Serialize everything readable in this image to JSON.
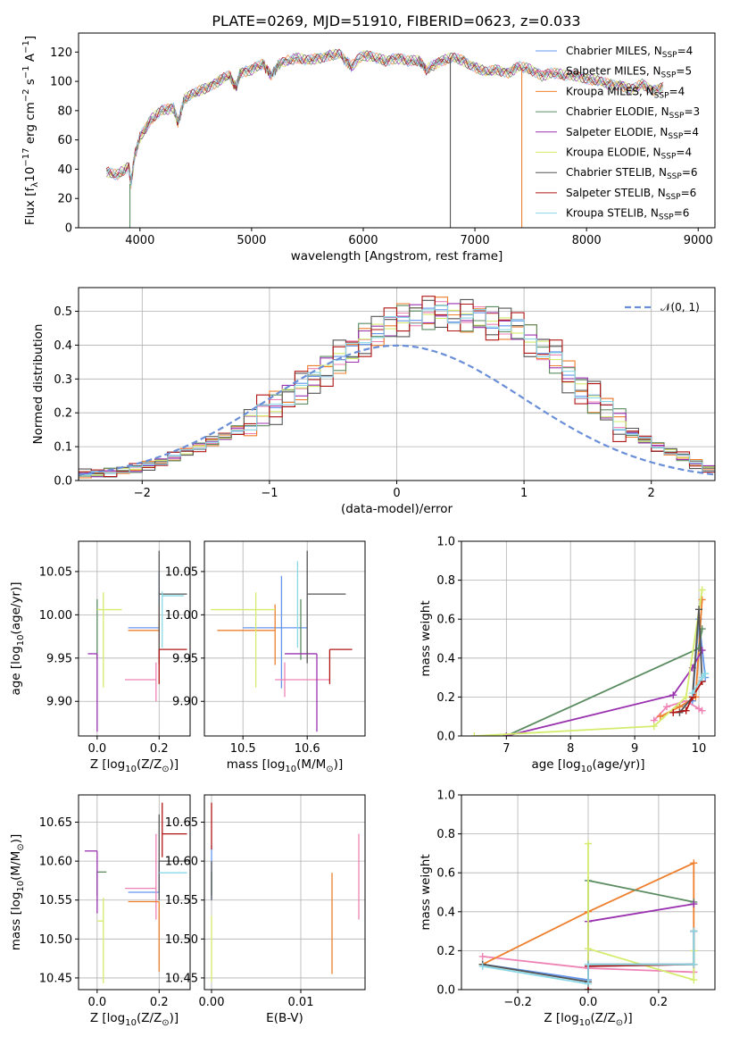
{
  "title": "PLATE=0269, MJD=51910, FIBERID=0623, z=0.033",
  "models": [
    {
      "name": "Chabrier MILES",
      "nssp": "4",
      "color": "#6495ed"
    },
    {
      "name": "Salpeter MILES",
      "nssp": "5",
      "color": "#ee82b4"
    },
    {
      "name": "Kroupa MILES",
      "nssp": "4",
      "color": "#ee7f2d"
    },
    {
      "name": "Chabrier ELODIE",
      "nssp": "3",
      "color": "#5b8c61"
    },
    {
      "name": "Salpeter ELODIE",
      "nssp": "4",
      "color": "#9a32b0"
    },
    {
      "name": "Kroupa ELODIE",
      "nssp": "4",
      "color": "#d4ec6e"
    },
    {
      "name": "Chabrier STELIB",
      "nssp": "6",
      "color": "#555555"
    },
    {
      "name": "Salpeter STELIB",
      "nssp": "6",
      "color": "#b01515"
    },
    {
      "name": "Kroupa STELIB",
      "nssp": "6",
      "color": "#88d8e6"
    }
  ],
  "chart_data": [
    {
      "id": "spectrum",
      "type": "line",
      "xlabel": "wavelength [Angstrom, rest frame]",
      "ylabel": "Flux [f$_\\lambda$10$^{-17}$ erg cm$^{-2}$ s$^{-1}$ A$^{-1}$]",
      "ylabel_parts": [
        "Flux [f",
        "λ",
        "10",
        "−17",
        " erg cm",
        "−2",
        " s",
        "−1",
        " A",
        "−1",
        "]"
      ],
      "xlim": [
        3450,
        9150
      ],
      "ylim": [
        0,
        133
      ],
      "xticks": [
        4000,
        5000,
        6000,
        7000,
        8000,
        9000
      ],
      "yticks": [
        0,
        20,
        40,
        60,
        80,
        100,
        120
      ],
      "grid": false,
      "legend": "upper right",
      "legend_suffix": "N",
      "legend_sub": "SSP",
      "x": [
        3700,
        3800,
        3900,
        3920,
        3950,
        4000,
        4100,
        4200,
        4300,
        4340,
        4400,
        4500,
        4600,
        4700,
        4800,
        4861,
        4900,
        5000,
        5100,
        5175,
        5250,
        5400,
        5500,
        5600,
        5700,
        5800,
        5893,
        6000,
        6100,
        6200,
        6300,
        6400,
        6500,
        6563,
        6700,
        6800,
        6900,
        7000,
        7100,
        7200,
        7300,
        7400,
        7500,
        7600,
        7700,
        7800,
        7900,
        8000,
        8100,
        8200,
        8300,
        8400,
        8500,
        8600,
        8700
      ],
      "y": [
        38,
        36,
        42,
        30,
        48,
        62,
        74,
        80,
        82,
        72,
        88,
        92,
        96,
        100,
        104,
        96,
        106,
        108,
        112,
        104,
        112,
        116,
        114,
        116,
        118,
        118,
        110,
        118,
        116,
        114,
        116,
        114,
        114,
        108,
        114,
        116,
        114,
        110,
        106,
        108,
        106,
        110,
        108,
        104,
        106,
        104,
        104,
        102,
        100,
        98,
        98,
        94,
        98,
        94,
        96
      ],
      "drops": [
        {
          "x": 3910,
          "to": 0
        },
        {
          "x": 6780,
          "to": 0
        },
        {
          "x": 7420,
          "to": 0
        }
      ]
    },
    {
      "id": "residuals",
      "type": "histogram",
      "xlabel": "(data-model)/error",
      "ylabel": "Normed distribution",
      "xlim": [
        -2.5,
        2.5
      ],
      "ylim": [
        0,
        0.57
      ],
      "xticks": [
        -2,
        -1,
        0,
        1,
        2
      ],
      "yticks": [
        0.0,
        0.1,
        0.2,
        0.3,
        0.4,
        0.5
      ],
      "grid": true,
      "legend": "upper right",
      "gaussian_label": "𝒩(0, 1)",
      "gaussian_color": "#6a8fd8",
      "bin_width": 0.1,
      "bin_start": -2.5,
      "base_profile": [
        0.02,
        0.02,
        0.025,
        0.03,
        0.035,
        0.045,
        0.055,
        0.07,
        0.085,
        0.1,
        0.115,
        0.13,
        0.15,
        0.17,
        0.2,
        0.22,
        0.25,
        0.27,
        0.3,
        0.33,
        0.36,
        0.38,
        0.42,
        0.44,
        0.46,
        0.48,
        0.49,
        0.49,
        0.5,
        0.49,
        0.48,
        0.48,
        0.47,
        0.46,
        0.45,
        0.42,
        0.39,
        0.36,
        0.31,
        0.27,
        0.24,
        0.21,
        0.17,
        0.14,
        0.12,
        0.1,
        0.085,
        0.07,
        0.05,
        0.035
      ],
      "jitter": [
        0.01,
        -0.015,
        0.02,
        -0.02,
        0.015,
        -0.01,
        0.025,
        -0.025,
        0.012
      ]
    },
    {
      "id": "age-vs-Z",
      "type": "errorbar",
      "xlabel": "Z [log$_{10}$(Z/Z$_\\odot$)]",
      "ylabel": "age  [log$_{10}$(age/yr)]",
      "xlim": [
        -0.06,
        0.3
      ],
      "ylim": [
        9.86,
        10.085
      ],
      "xticks": [
        0.0,
        0.2
      ],
      "yticks": [
        9.9,
        9.95,
        10.0,
        10.05
      ],
      "grid": true,
      "points": [
        {
          "x": 0.2,
          "xerr": [
            0.1,
            0.0
          ],
          "y": 9.985,
          "yerr": [
            0.015,
            0.065
          ]
        },
        {
          "x": 0.19,
          "xerr": [
            0.1,
            0.0
          ],
          "y": 9.925,
          "yerr": [
            0.025,
            0.02
          ]
        },
        {
          "x": 0.2,
          "xerr": [
            0.1,
            0.0
          ],
          "y": 9.982,
          "yerr": [
            0.04,
            0.03
          ]
        },
        {
          "x": 0.0,
          "xerr": [
            0.0,
            0.0
          ],
          "y": 10.008,
          "yerr": [
            0.06,
            0.01
          ]
        },
        {
          "x": 0.0,
          "xerr": [
            0.03,
            0.0
          ],
          "y": 9.955,
          "yerr": [
            0.09,
            0.0
          ]
        },
        {
          "x": 0.02,
          "xerr": [
            0.02,
            0.06
          ],
          "y": 10.006,
          "yerr": [
            0.09,
            0.02
          ]
        },
        {
          "x": 0.2,
          "xerr": [
            0.0,
            0.09
          ],
          "y": 10.024,
          "yerr": [
            0.08,
            0.05
          ]
        },
        {
          "x": 0.2,
          "xerr": [
            0.0,
            0.09
          ],
          "y": 9.96,
          "yerr": [
            0.04,
            0.0
          ]
        },
        {
          "x": 0.21,
          "xerr": [
            0.0,
            0.07
          ],
          "y": 10.022,
          "yerr": [
            0.06,
            0.005
          ]
        }
      ]
    },
    {
      "id": "age-vs-mass",
      "type": "errorbar",
      "xlabel": "mass [log$_{10}$(M/M$_\\odot$)]",
      "ylabel": "",
      "xlim": [
        10.44,
        10.69
      ],
      "ylim": [
        9.86,
        10.085
      ],
      "xticks": [
        10.5,
        10.6
      ],
      "yticks": [
        9.9,
        9.95,
        10.0,
        10.05
      ],
      "grid": true,
      "points": [
        {
          "x": 10.56,
          "xerr": [
            0.06,
            0.04
          ],
          "y": 9.985,
          "yerr": [
            0.07,
            0.06
          ]
        },
        {
          "x": 10.565,
          "xerr": [
            0.015,
            0.07
          ],
          "y": 9.925,
          "yerr": [
            0.02,
            0.02
          ]
        },
        {
          "x": 10.55,
          "xerr": [
            0.09,
            0.0
          ],
          "y": 9.982,
          "yerr": [
            0.04,
            0.03
          ]
        },
        {
          "x": 10.59,
          "xerr": [
            0.0,
            0.0
          ],
          "y": 10.008,
          "yerr": [
            0.06,
            0.01
          ]
        },
        {
          "x": 10.615,
          "xerr": [
            0.05,
            0.0
          ],
          "y": 9.955,
          "yerr": [
            0.09,
            0.0
          ]
        },
        {
          "x": 10.52,
          "xerr": [
            0.07,
            0.03
          ],
          "y": 10.006,
          "yerr": [
            0.09,
            0.02
          ]
        },
        {
          "x": 10.6,
          "xerr": [
            0.0,
            0.06
          ],
          "y": 10.024,
          "yerr": [
            0.08,
            0.05
          ]
        },
        {
          "x": 10.635,
          "xerr": [
            0.0,
            0.035
          ],
          "y": 9.96,
          "yerr": [
            0.04,
            0.0
          ]
        },
        {
          "x": 10.585,
          "xerr": [
            0.0,
            0.0
          ],
          "y": 10.022,
          "yerr": [
            0.06,
            0.04
          ]
        }
      ]
    },
    {
      "id": "mass-weight-vs-age",
      "type": "line",
      "xlabel": "age  [log$_{10}$(age/yr)]",
      "ylabel": "mass weight",
      "xlim": [
        6.3,
        10.25
      ],
      "ylim": [
        0,
        1.0
      ],
      "xticks": [
        7,
        8,
        9,
        10
      ],
      "yticks": [
        0.0,
        0.2,
        0.4,
        0.6,
        0.8,
        1.0
      ],
      "grid": true,
      "series": [
        [
          [
            9.7,
            0.15
          ],
          [
            9.9,
            0.18
          ],
          [
            10.0,
            0.6
          ],
          [
            10.1,
            0.3
          ]
        ],
        [
          [
            9.3,
            0.08
          ],
          [
            9.5,
            0.15
          ],
          [
            9.8,
            0.18
          ],
          [
            10.0,
            0.14
          ],
          [
            10.05,
            0.13
          ]
        ],
        [
          [
            9.4,
            0.1
          ],
          [
            9.7,
            0.15
          ],
          [
            9.95,
            0.2
          ],
          [
            10.05,
            0.7
          ]
        ],
        [
          [
            7.0,
            0.0
          ],
          [
            10.0,
            0.45
          ],
          [
            10.05,
            0.55
          ]
        ],
        [
          [
            7.0,
            0.0
          ],
          [
            9.6,
            0.21
          ],
          [
            9.9,
            0.35
          ],
          [
            10.05,
            0.44
          ]
        ],
        [
          [
            6.5,
            0.0
          ],
          [
            9.3,
            0.05
          ],
          [
            9.8,
            0.2
          ],
          [
            10.05,
            0.75
          ]
        ],
        [
          [
            9.7,
            0.12
          ],
          [
            9.9,
            0.2
          ],
          [
            10.0,
            0.65
          ],
          [
            10.05,
            0.28
          ]
        ],
        [
          [
            9.6,
            0.12
          ],
          [
            9.8,
            0.13
          ],
          [
            9.9,
            0.2
          ],
          [
            10.05,
            0.28
          ]
        ],
        [
          [
            9.9,
            0.22
          ],
          [
            10.05,
            0.3
          ],
          [
            10.1,
            0.32
          ]
        ]
      ]
    },
    {
      "id": "mass-vs-Z",
      "type": "errorbar",
      "xlabel": "Z [log$_{10}$(Z/Z$_\\odot$)]",
      "ylabel": "mass [log$_{10}$(M/M$_\\odot$)]",
      "xlim": [
        -0.06,
        0.3
      ],
      "ylim": [
        10.435,
        10.685
      ],
      "xticks": [
        0.0,
        0.2
      ],
      "yticks": [
        10.45,
        10.5,
        10.55,
        10.6,
        10.65
      ],
      "grid": true,
      "points": [
        {
          "x": 0.2,
          "xerr": [
            0.1,
            0.0
          ],
          "y": 10.56,
          "yerr": [
            0.0,
            0.04
          ]
        },
        {
          "x": 0.19,
          "xerr": [
            0.1,
            0.0
          ],
          "y": 10.565,
          "yerr": [
            0.04,
            0.07
          ]
        },
        {
          "x": 0.2,
          "xerr": [
            0.1,
            0.0
          ],
          "y": 10.548,
          "yerr": [
            0.09,
            0.0
          ]
        },
        {
          "x": 0.0,
          "xerr": [
            0.0,
            0.03
          ],
          "y": 10.586,
          "yerr": [
            0.03,
            0.0
          ]
        },
        {
          "x": 0.0,
          "xerr": [
            0.04,
            0.0
          ],
          "y": 10.613,
          "yerr": [
            0.08,
            0.0
          ]
        },
        {
          "x": 0.02,
          "xerr": [
            0.02,
            0.0
          ],
          "y": 10.523,
          "yerr": [
            0.08,
            0.03
          ]
        },
        {
          "x": 0.2,
          "xerr": [
            0.0,
            0.1
          ],
          "y": 10.6,
          "yerr": [
            0.05,
            0.06
          ]
        },
        {
          "x": 0.21,
          "xerr": [
            0.0,
            0.08
          ],
          "y": 10.635,
          "yerr": [
            0.03,
            0.04
          ]
        },
        {
          "x": 0.2,
          "xerr": [
            0.0,
            0.09
          ],
          "y": 10.585,
          "yerr": [
            0.0,
            0.0
          ]
        }
      ]
    },
    {
      "id": "mass-vs-EBV",
      "type": "errorbar",
      "xlabel": "E(B-V)",
      "ylabel": "",
      "xlim": [
        -0.0008,
        0.0172
      ],
      "ylim": [
        10.435,
        10.685
      ],
      "xticks": [
        0.0,
        0.01
      ],
      "yticks": [
        10.45,
        10.5,
        10.55,
        10.6,
        10.65
      ],
      "grid": true,
      "points": [
        {
          "x": 0.0,
          "xerr": [
            0.0,
            0.0
          ],
          "y": 10.56,
          "yerr": [
            0.01,
            0.06
          ]
        },
        {
          "x": 0.0165,
          "xerr": [
            0.0,
            0.0
          ],
          "y": 10.58,
          "yerr": [
            0.055,
            0.055
          ]
        },
        {
          "x": 0.0135,
          "xerr": [
            0.0,
            0.0
          ],
          "y": 10.52,
          "yerr": [
            0.065,
            0.065
          ]
        },
        {
          "x": 0.0,
          "xerr": [
            0.0,
            0.0
          ],
          "y": 10.586,
          "yerr": [
            0.03,
            0.0
          ]
        },
        {
          "x": 0.0,
          "xerr": [
            0.0,
            0.0
          ],
          "y": 10.613,
          "yerr": [
            0.0,
            0.0
          ]
        },
        {
          "x": 0.0,
          "xerr": [
            0.0,
            0.0
          ],
          "y": 10.49,
          "yerr": [
            0.045,
            0.04
          ]
        },
        {
          "x": 0.0,
          "xerr": [
            0.0,
            0.0
          ],
          "y": 10.6,
          "yerr": [
            0.05,
            0.0
          ]
        },
        {
          "x": 0.0,
          "xerr": [
            0.0,
            0.0
          ],
          "y": 10.645,
          "yerr": [
            0.03,
            0.03
          ]
        },
        {
          "x": 0.0135,
          "xerr": [
            0.0,
            0.0
          ],
          "y": 10.598,
          "yerr": [
            0.0,
            0.0
          ]
        }
      ]
    },
    {
      "id": "mass-weight-vs-Z",
      "type": "line",
      "xlabel": "Z [log$_{10}$(Z/Z$_\\odot$)]",
      "ylabel": "mass weight",
      "xlim": [
        -0.36,
        0.36
      ],
      "ylim": [
        0,
        1.0
      ],
      "xticks": [
        -0.2,
        0.0,
        0.2
      ],
      "yticks": [
        0.0,
        0.2,
        0.4,
        0.6,
        0.8,
        1.0
      ],
      "grid": true,
      "series": [
        [
          [
            -0.3,
            0.13
          ],
          [
            0.0,
            0.05
          ],
          [
            0.0,
            0.12
          ],
          [
            0.3,
            0.13
          ],
          [
            0.3,
            0.3
          ]
        ],
        [
          [
            -0.3,
            0.17
          ],
          [
            0.0,
            0.11
          ],
          [
            0.3,
            0.09
          ],
          [
            0.3,
            0.3
          ]
        ],
        [
          [
            -0.3,
            0.13
          ],
          [
            0.0,
            0.4
          ],
          [
            0.3,
            0.65
          ],
          [
            0.3,
            0.13
          ]
        ],
        [
          [
            0.0,
            0.0
          ],
          [
            0.0,
            0.56
          ],
          [
            0.3,
            0.45
          ]
        ],
        [
          [
            0.0,
            0.13
          ],
          [
            0.0,
            0.35
          ],
          [
            0.3,
            0.44
          ]
        ],
        [
          [
            0.0,
            0.0
          ],
          [
            0.0,
            0.75
          ],
          [
            0.0,
            0.21
          ],
          [
            0.3,
            0.05
          ],
          [
            0.3,
            0.2
          ]
        ],
        [
          [
            -0.3,
            0.13
          ],
          [
            0.0,
            0.04
          ],
          [
            0.0,
            0.13
          ],
          [
            0.3,
            0.13
          ],
          [
            0.3,
            0.3
          ]
        ],
        [
          [
            0.0,
            0.0
          ],
          [
            0.0,
            0.12
          ],
          [
            0.3,
            0.13
          ]
        ],
        [
          [
            -0.3,
            0.12
          ],
          [
            0.0,
            0.03
          ],
          [
            0.0,
            0.13
          ],
          [
            0.3,
            0.13
          ],
          [
            0.3,
            0.3
          ]
        ]
      ]
    }
  ]
}
